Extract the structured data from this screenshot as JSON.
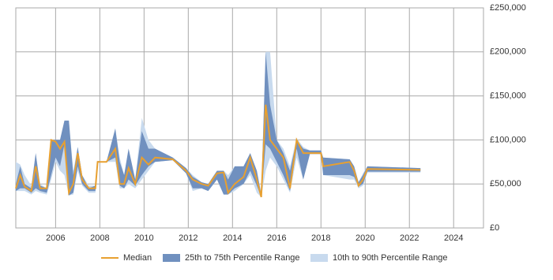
{
  "chart_data": {
    "type": "band",
    "x": [
      2004.2,
      2004.4,
      2004.6,
      2004.9,
      2005.1,
      2005.3,
      2005.6,
      2005.8,
      2006.0,
      2006.2,
      2006.4,
      2006.6,
      2006.8,
      2007.0,
      2007.2,
      2007.5,
      2007.8,
      2007.9,
      2008.3,
      2008.7,
      2008.9,
      2009.1,
      2009.3,
      2009.6,
      2009.9,
      2010.2,
      2010.5,
      2011.3,
      2011.9,
      2012.2,
      2012.6,
      2012.9,
      2013.3,
      2013.6,
      2013.8,
      2014.1,
      2014.5,
      2014.8,
      2015.1,
      2015.3,
      2015.5,
      2015.7,
      2016.0,
      2016.3,
      2016.6,
      2016.9,
      2017.2,
      2017.5,
      2018.0,
      2018.1,
      2019.3,
      2019.5,
      2019.7,
      2019.9,
      2020.1,
      2022.5
    ],
    "series": [
      {
        "name": "Median",
        "color": "#e8a030",
        "values": [
          45000,
          60000,
          47000,
          42000,
          70000,
          45000,
          45000,
          100000,
          98000,
          90000,
          98000,
          40000,
          50000,
          85000,
          55000,
          45000,
          45000,
          75000,
          75000,
          90000,
          50000,
          50000,
          68000,
          50000,
          80000,
          72000,
          80000,
          78000,
          65000,
          55000,
          50000,
          48000,
          62000,
          63000,
          40000,
          50000,
          58000,
          80000,
          55000,
          35000,
          140000,
          100000,
          90000,
          80000,
          45000,
          100000,
          85000,
          85000,
          85000,
          70000,
          75000,
          65000,
          48000,
          55000,
          67000,
          66000
        ]
      },
      {
        "name": "25th to 75th Percentile Range",
        "color": "#7090bf",
        "low": [
          42000,
          45000,
          45000,
          40000,
          45000,
          42000,
          40000,
          60000,
          80000,
          70000,
          95000,
          37000,
          40000,
          70000,
          50000,
          42000,
          42000,
          75000,
          75000,
          80000,
          48000,
          45000,
          55000,
          48000,
          60000,
          70000,
          75000,
          77000,
          62000,
          45000,
          45000,
          42000,
          55000,
          38000,
          38000,
          45000,
          50000,
          65000,
          48000,
          35000,
          95000,
          90000,
          75000,
          60000,
          42000,
          90000,
          55000,
          84000,
          84000,
          60000,
          60000,
          58000,
          47000,
          50000,
          64000,
          64000
        ],
        "high": [
          50000,
          70000,
          50000,
          45000,
          85000,
          48000,
          45000,
          100000,
          100000,
          100000,
          122000,
          122000,
          60000,
          92000,
          60000,
          45000,
          48000,
          76000,
          75000,
          113000,
          75000,
          60000,
          90000,
          55000,
          110000,
          90000,
          90000,
          80000,
          68000,
          58000,
          52000,
          50000,
          65000,
          65000,
          55000,
          70000,
          70000,
          85000,
          65000,
          38000,
          200000,
          140000,
          100000,
          85000,
          65000,
          100000,
          90000,
          88000,
          88000,
          80000,
          78000,
          70000,
          52000,
          60000,
          70000,
          68000
        ]
      },
      {
        "name": "10th to 90th Percentile Range",
        "color": "#c8daee",
        "low": [
          42000,
          42000,
          42000,
          38000,
          42000,
          40000,
          38000,
          55000,
          75000,
          65000,
          60000,
          37000,
          38000,
          65000,
          48000,
          40000,
          40000,
          75000,
          75000,
          75000,
          45000,
          45000,
          50000,
          45000,
          55000,
          65000,
          75000,
          77000,
          62000,
          42000,
          45000,
          42000,
          55000,
          38000,
          38000,
          42000,
          50000,
          60000,
          40000,
          35000,
          65000,
          80000,
          70000,
          55000,
          40000,
          80000,
          55000,
          84000,
          84000,
          60000,
          55000,
          55000,
          45000,
          48000,
          63000,
          63000
        ],
        "high": [
          75000,
          72000,
          60000,
          48000,
          85000,
          50000,
          45000,
          100000,
          100000,
          100000,
          122000,
          122000,
          65000,
          92000,
          60000,
          48000,
          48000,
          76000,
          75000,
          113000,
          80000,
          60000,
          90000,
          55000,
          125000,
          100000,
          90000,
          80000,
          68000,
          60000,
          52000,
          50000,
          65000,
          65000,
          60000,
          70000,
          70000,
          85000,
          65000,
          40000,
          200000,
          200000,
          100000,
          90000,
          70000,
          102000,
          92000,
          88000,
          88000,
          80000,
          78000,
          70000,
          52000,
          62000,
          70000,
          68000
        ]
      }
    ],
    "xlim": [
      2004.2,
      2025.35
    ],
    "xticks": [
      2006,
      2008,
      2010,
      2012,
      2014,
      2016,
      2018,
      2020,
      2022,
      2024
    ],
    "ylim": [
      0,
      250000
    ],
    "yticks": [
      {
        "value": 0,
        "label": "£0"
      },
      {
        "value": 50000,
        "label": "£50,000"
      },
      {
        "value": 100000,
        "label": "£100,000"
      },
      {
        "value": 150000,
        "label": "£150,000"
      },
      {
        "value": 200000,
        "label": "£200,000"
      },
      {
        "value": 250000,
        "label": "£250,000"
      }
    ],
    "grid": true
  }
}
